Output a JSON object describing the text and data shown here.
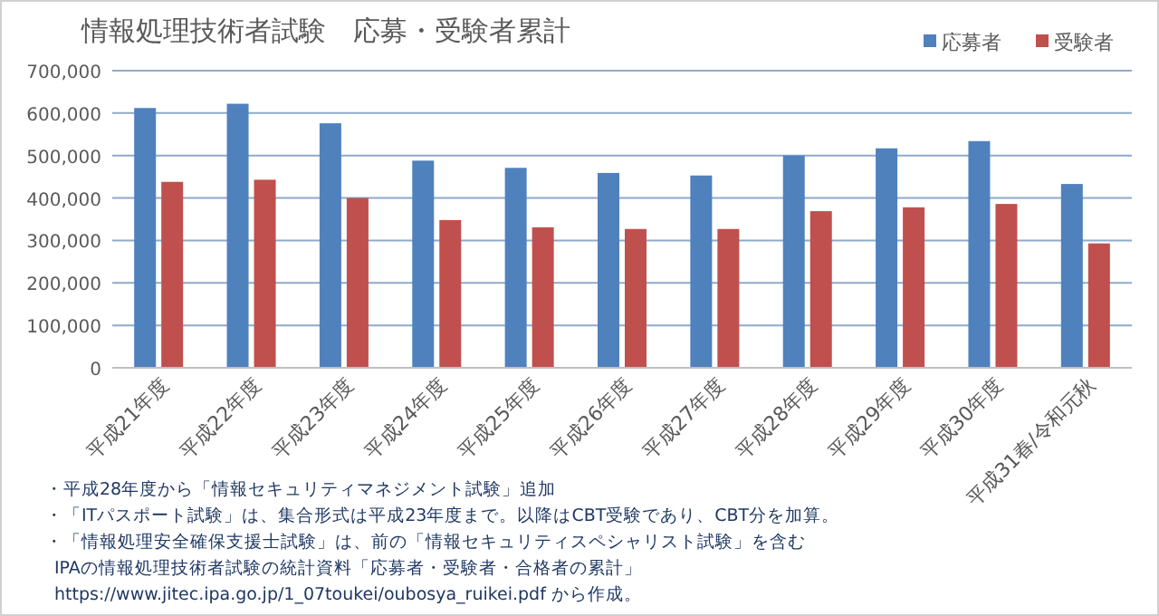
{
  "chart_data": {
    "type": "bar",
    "title": "情報処理技術者試験　応募・受験者累計",
    "categories": [
      "平成21年度",
      "平成22年度",
      "平成23年度",
      "平成24年度",
      "平成25年度",
      "平成26年度",
      "平成27年度",
      "平成28年度",
      "平成29年度",
      "平成30年度",
      "平成31春/令和元秋"
    ],
    "series": [
      {
        "name": "応募者",
        "color": "#4f81bd",
        "values": [
          612000,
          622000,
          576000,
          488000,
          471000,
          459000,
          453000,
          500000,
          517000,
          534000,
          433000
        ]
      },
      {
        "name": "受験者",
        "color": "#c0504d",
        "values": [
          438000,
          443000,
          400000,
          348000,
          331000,
          327000,
          327000,
          369000,
          378000,
          386000,
          293000
        ]
      }
    ],
    "ylim": [
      0,
      700000
    ],
    "yticks": [
      {
        "value": 0,
        "label": "0"
      },
      {
        "value": 100000,
        "label": "100,000"
      },
      {
        "value": 200000,
        "label": "200,000"
      },
      {
        "value": 300000,
        "label": "300,000"
      },
      {
        "value": 400000,
        "label": "400,000"
      },
      {
        "value": 500000,
        "label": "500,000"
      },
      {
        "value": 600000,
        "label": "600,000"
      },
      {
        "value": 700000,
        "label": "700,000"
      }
    ],
    "grid": "y",
    "legend": "top right",
    "annotations": [
      "・平成28年度から「情報セキュリティマネジメント試験」追加",
      "・「ITパスポート試験」は、集合形式は平成23年度まで。以降はCBT受験であり、CBT分を加算。",
      "・「情報処理安全確保支援士試験」は、前の「情報セキュリティスペシャリスト試験」を含む",
      "IPAの情報処理技術者試験の統計資料「応募者・受験者・合格者の累計」",
      "https://www.jitec.ipa.go.jp/1_07toukei/oubosya_ruikei.pdf から作成。"
    ]
  }
}
